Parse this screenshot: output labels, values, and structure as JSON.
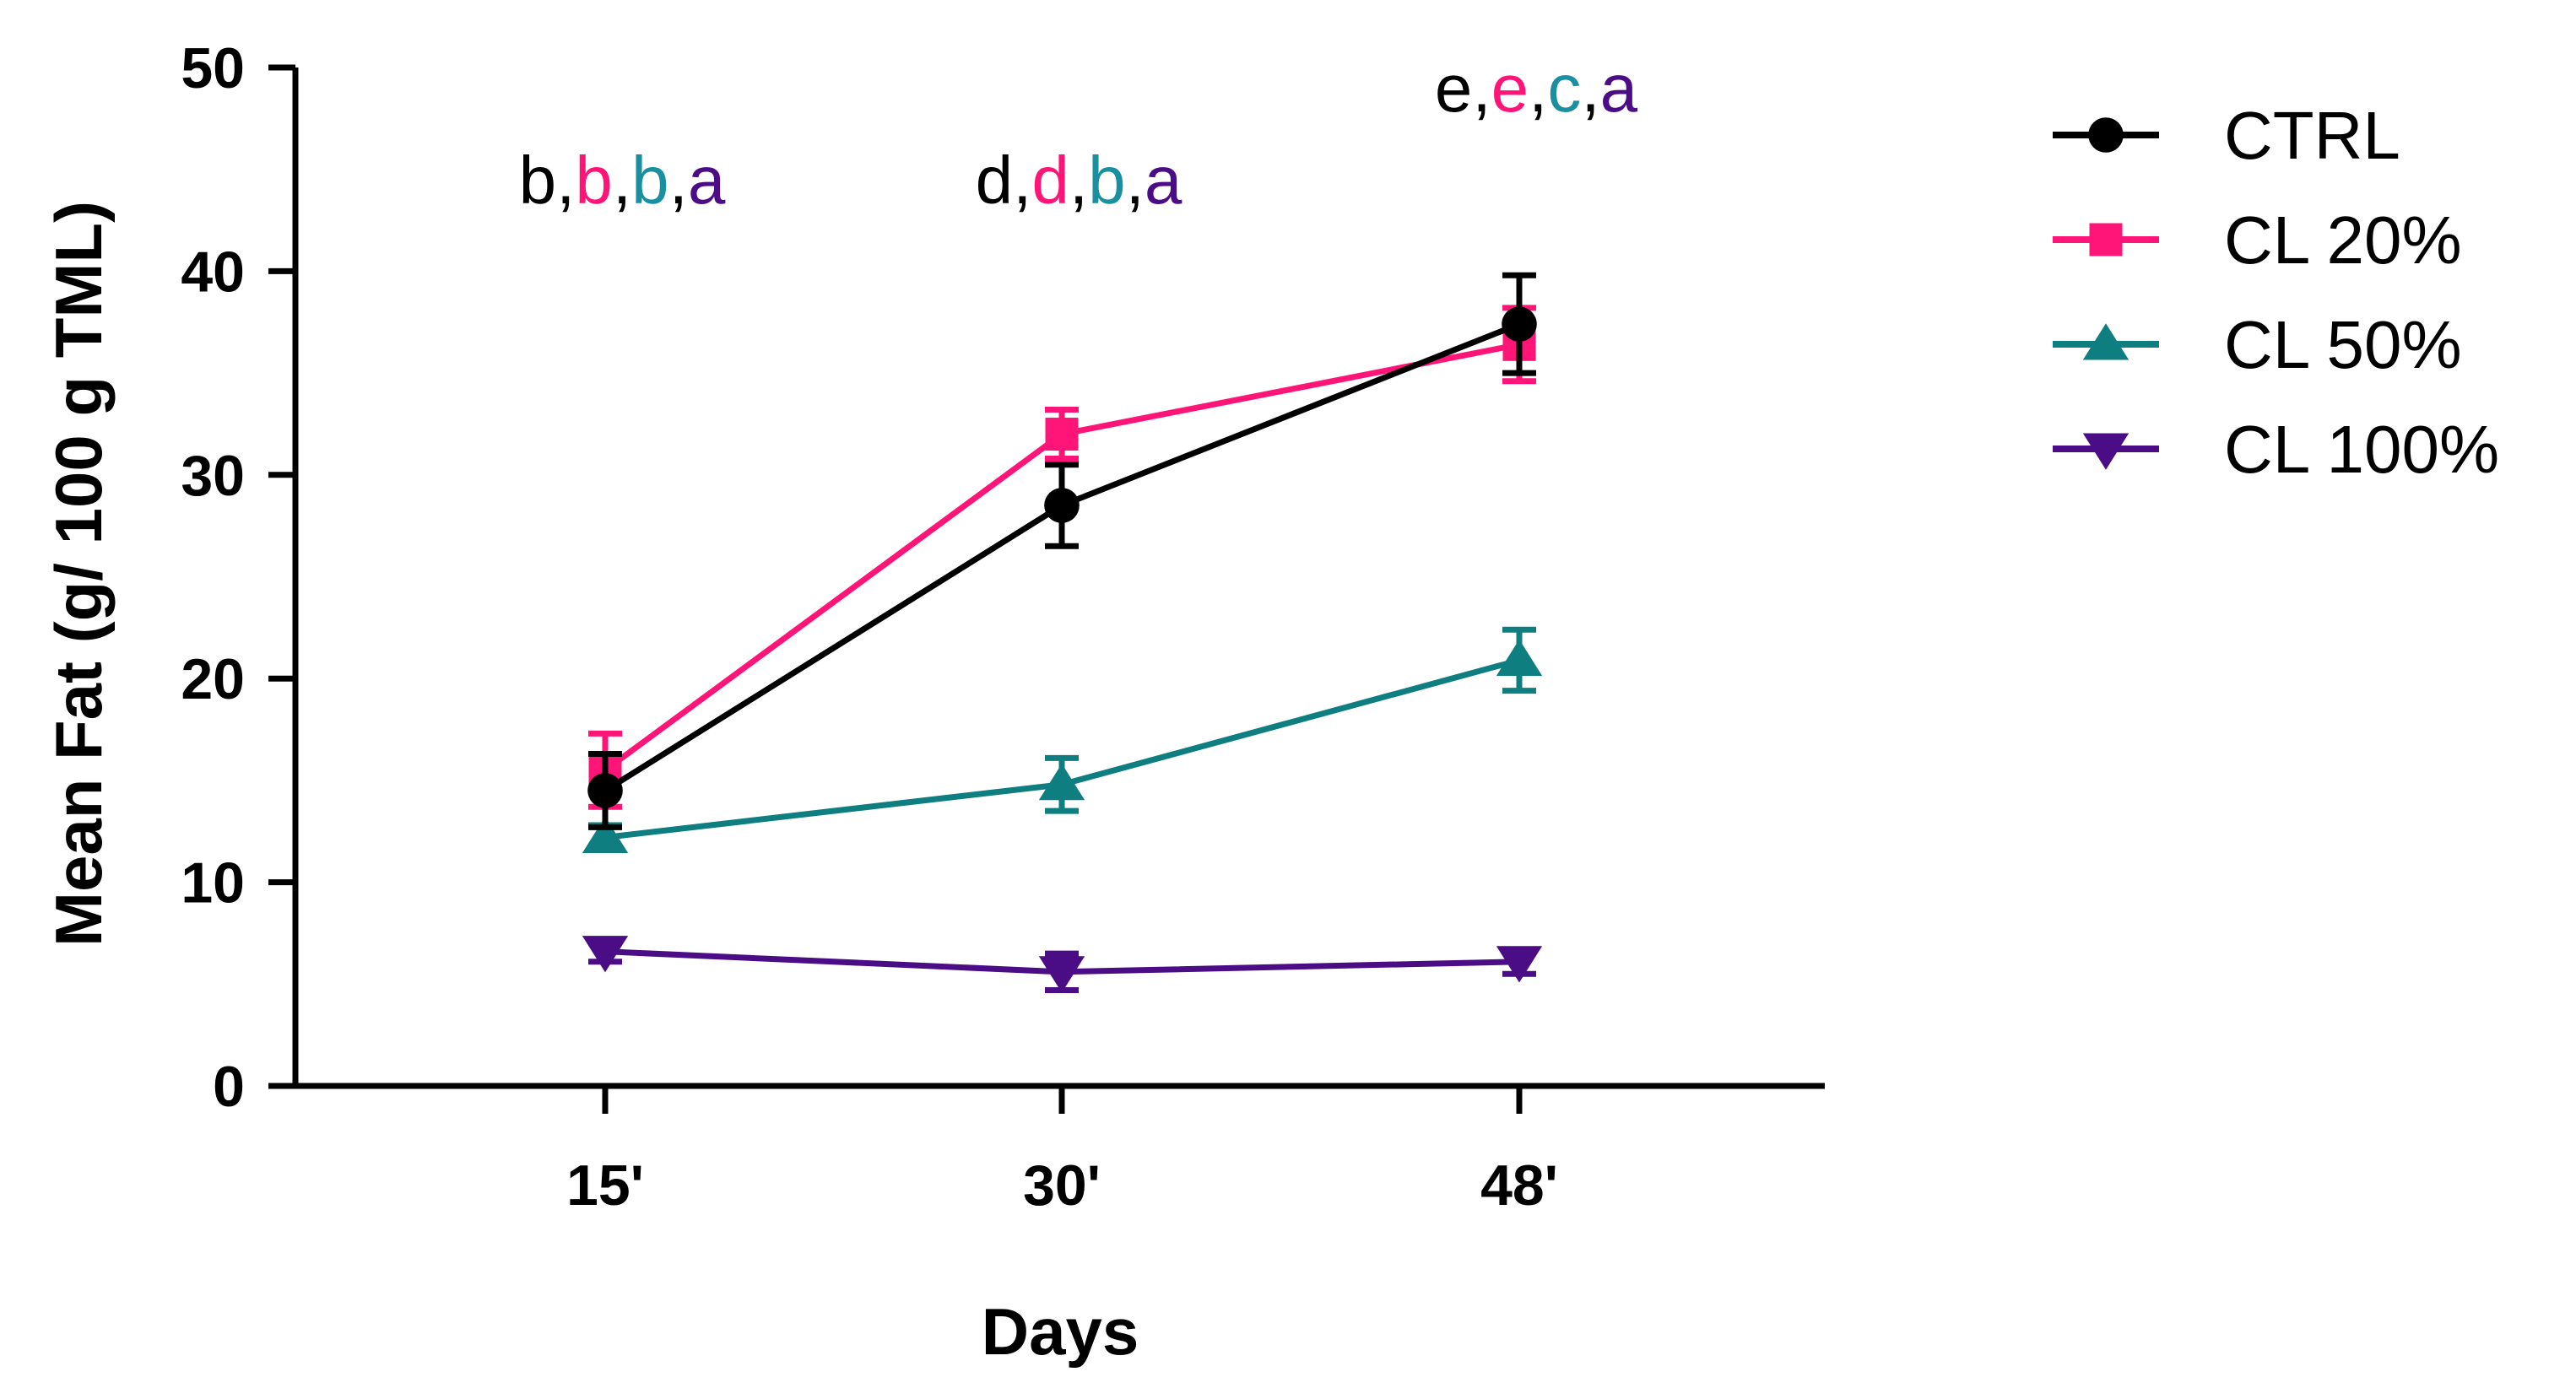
{
  "chart_data": {
    "type": "line",
    "title": "",
    "xlabel": "Days",
    "ylabel": "Mean Fat (g/ 100 g  TML)",
    "categories": [
      "15'",
      "30'",
      "48'"
    ],
    "ylim": [
      0,
      50
    ],
    "yticks": [
      "0",
      "10",
      "20",
      "30",
      "40",
      "50"
    ],
    "series": [
      {
        "name": "CTRL",
        "color": "#000000",
        "marker": "circle",
        "values": [
          14.5,
          28.5,
          37.4
        ],
        "errors": [
          1.8,
          2.0,
          2.4
        ]
      },
      {
        "name": "CL 20%",
        "color": "#ff1477",
        "marker": "square",
        "values": [
          15.5,
          32.0,
          36.4
        ],
        "errors": [
          1.8,
          1.2,
          1.8
        ]
      },
      {
        "name": "CL 50%",
        "color": "#0e7e80",
        "marker": "triangle-up",
        "values": [
          12.2,
          14.8,
          20.9
        ],
        "errors": [
          0.6,
          1.3,
          1.5
        ]
      },
      {
        "name": "CL 100%",
        "color": "#4b0d86",
        "marker": "triangle-down",
        "values": [
          6.6,
          5.6,
          6.1
        ],
        "errors": [
          0.5,
          0.9,
          0.6
        ]
      }
    ],
    "annotations": [
      {
        "category": "15'",
        "y": 44.5,
        "parts": [
          {
            "text": "b",
            "color": "#000000"
          },
          {
            "text": ",",
            "color": "#000000"
          },
          {
            "text": "b",
            "color": "#ff1477"
          },
          {
            "text": ",",
            "color": "#000000"
          },
          {
            "text": "b",
            "color": "#1a8fa0"
          },
          {
            "text": ",",
            "color": "#000000"
          },
          {
            "text": "a",
            "color": "#4b0d86"
          }
        ]
      },
      {
        "category": "30'",
        "y": 44.5,
        "parts": [
          {
            "text": "d",
            "color": "#000000"
          },
          {
            "text": ",",
            "color": "#000000"
          },
          {
            "text": "d",
            "color": "#ff1477"
          },
          {
            "text": ",",
            "color": "#000000"
          },
          {
            "text": "b",
            "color": "#1a8fa0"
          },
          {
            "text": ",",
            "color": "#000000"
          },
          {
            "text": "a",
            "color": "#4b0d86"
          }
        ]
      },
      {
        "category": "48'",
        "y": 49.0,
        "parts": [
          {
            "text": "e",
            "color": "#000000"
          },
          {
            "text": ",",
            "color": "#000000"
          },
          {
            "text": "e",
            "color": "#ff1477"
          },
          {
            "text": ",",
            "color": "#000000"
          },
          {
            "text": "c",
            "color": "#1a8fa0"
          },
          {
            "text": ",",
            "color": "#000000"
          },
          {
            "text": "a",
            "color": "#4b0d86"
          }
        ]
      }
    ],
    "legend": "right"
  }
}
